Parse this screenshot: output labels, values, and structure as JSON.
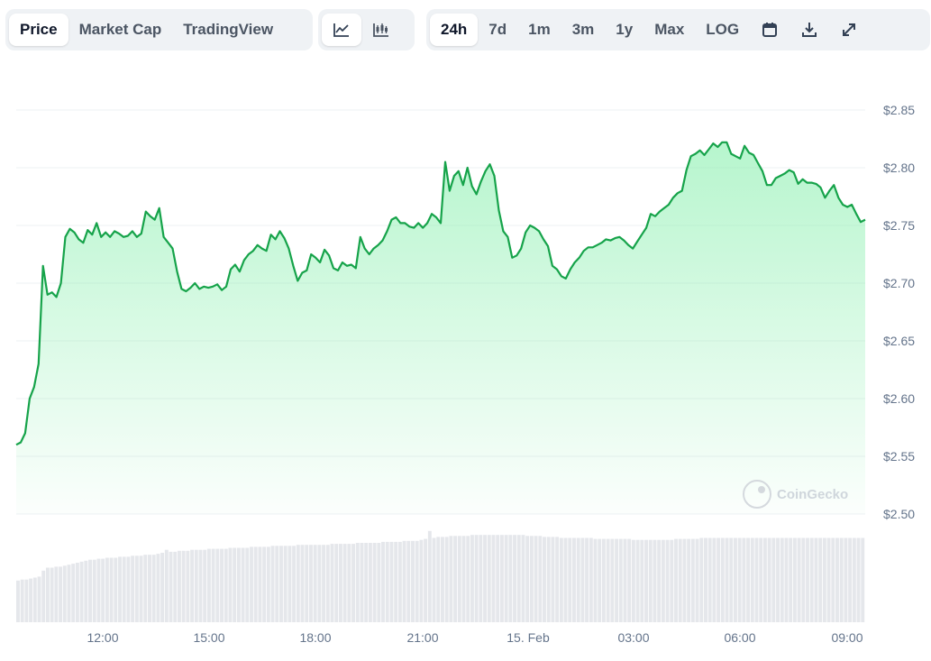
{
  "toolbar": {
    "metric_tabs": [
      {
        "label": "Price",
        "active": true
      },
      {
        "label": "Market Cap",
        "active": false
      },
      {
        "label": "TradingView",
        "active": false
      }
    ],
    "chart_type_icons": [
      {
        "icon": "line-chart-icon",
        "active": true
      },
      {
        "icon": "candlestick-chart-icon",
        "active": false
      }
    ],
    "ranges": [
      {
        "label": "24h",
        "active": true
      },
      {
        "label": "7d",
        "active": false
      },
      {
        "label": "1m",
        "active": false
      },
      {
        "label": "3m",
        "active": false
      },
      {
        "label": "1y",
        "active": false
      },
      {
        "label": "Max",
        "active": false
      },
      {
        "label": "LOG",
        "active": false
      }
    ],
    "tool_icons": [
      "calendar-icon",
      "download-icon",
      "expand-icon"
    ]
  },
  "watermark": "CoinGecko",
  "colors": {
    "line": "#16a34a",
    "fill": "#86efac",
    "volume": "#e5e7eb",
    "grid": "#eef0f3",
    "label": "#64748b"
  },
  "chart_data": {
    "type": "area",
    "title": "",
    "ylim": [
      2.5,
      2.85
    ],
    "yticks": [
      "$2.85",
      "$2.80",
      "$2.75",
      "$2.70",
      "$2.65",
      "$2.60",
      "$2.55",
      "$2.50"
    ],
    "xticks": [
      "12:00",
      "15:00",
      "18:00",
      "21:00",
      "15. Feb",
      "03:00",
      "06:00",
      "09:00"
    ],
    "grid": true,
    "series": [
      {
        "values": [
          2.56,
          2.562,
          2.57,
          2.6,
          2.61,
          2.63,
          2.715,
          2.69,
          2.692,
          2.688,
          2.7,
          2.74,
          2.747,
          2.744,
          2.738,
          2.735,
          2.746,
          2.742,
          2.752,
          2.74,
          2.744,
          2.74,
          2.745,
          2.743,
          2.74,
          2.741,
          2.745,
          2.74,
          2.743,
          2.762,
          2.758,
          2.755,
          2.765,
          2.74,
          2.735,
          2.73,
          2.71,
          2.695,
          2.693,
          2.696,
          2.7,
          2.695,
          2.697,
          2.696,
          2.697,
          2.699,
          2.694,
          2.697,
          2.712,
          2.716,
          2.71,
          2.72,
          2.725,
          2.728,
          2.733,
          2.73,
          2.728,
          2.742,
          2.738,
          2.745,
          2.739,
          2.73,
          2.715,
          2.702,
          2.709,
          2.711,
          2.725,
          2.722,
          2.718,
          2.729,
          2.724,
          2.713,
          2.711,
          2.718,
          2.715,
          2.716,
          2.713,
          2.74,
          2.73,
          2.725,
          2.73,
          2.733,
          2.737,
          2.745,
          2.755,
          2.757,
          2.752,
          2.752,
          2.749,
          2.748,
          2.752,
          2.748,
          2.752,
          2.76,
          2.757,
          2.752,
          2.805,
          2.78,
          2.793,
          2.797,
          2.785,
          2.8,
          2.784,
          2.777,
          2.788,
          2.797,
          2.803,
          2.793,
          2.763,
          2.745,
          2.74,
          2.722,
          2.724,
          2.73,
          2.744,
          2.75,
          2.748,
          2.745,
          2.738,
          2.732,
          2.715,
          2.712,
          2.706,
          2.704,
          2.712,
          2.718,
          2.722,
          2.728,
          2.731,
          2.731,
          2.733,
          2.735,
          2.738,
          2.737,
          2.739,
          2.74,
          2.737,
          2.733,
          2.73,
          2.736,
          2.742,
          2.748,
          2.76,
          2.758,
          2.762,
          2.765,
          2.768,
          2.774,
          2.778,
          2.78,
          2.798,
          2.81,
          2.812,
          2.815,
          2.811,
          2.816,
          2.821,
          2.818,
          2.822,
          2.822,
          2.812,
          2.81,
          2.808,
          2.819,
          2.813,
          2.811,
          2.804,
          2.797,
          2.785,
          2.785,
          2.791,
          2.793,
          2.795,
          2.798,
          2.796,
          2.786,
          2.79,
          2.787,
          2.787,
          2.786,
          2.783,
          2.774,
          2.78,
          2.785,
          2.774,
          2.768,
          2.766,
          2.768,
          2.76,
          2.753,
          2.755
        ]
      }
    ],
    "volume": [
      42,
      43,
      43,
      44,
      45,
      46,
      52,
      55,
      55,
      56,
      56,
      57,
      58,
      59,
      60,
      61,
      62,
      63,
      63,
      64,
      64,
      65,
      65,
      65,
      66,
      66,
      66,
      67,
      67,
      67,
      68,
      68,
      68,
      69,
      70,
      73,
      71,
      71,
      72,
      72,
      72,
      73,
      73,
      73,
      73,
      74,
      74,
      74,
      74,
      74,
      75,
      75,
      75,
      75,
      75,
      76,
      76,
      76,
      76,
      76,
      77,
      77,
      77,
      77,
      77,
      77,
      78,
      78,
      78,
      78,
      78,
      78,
      78,
      78,
      79,
      79,
      79,
      79,
      79,
      79,
      80,
      80,
      80,
      80,
      80,
      80,
      81,
      81,
      81,
      81,
      81,
      82,
      82,
      82,
      82,
      83,
      84,
      92,
      85,
      86,
      86,
      86,
      87,
      87,
      87,
      87,
      87,
      88,
      88,
      88,
      88,
      88,
      88,
      88,
      88,
      88,
      88,
      88,
      88,
      88,
      87,
      87,
      87,
      87,
      86,
      86,
      86,
      86,
      85,
      85,
      85,
      85,
      85,
      85,
      85,
      85,
      84,
      84,
      84,
      84,
      84,
      84,
      84,
      84,
      84,
      83,
      83,
      83,
      83,
      83,
      83,
      83,
      83,
      83,
      83,
      84,
      84,
      84,
      84,
      84,
      84,
      85,
      85,
      85,
      85,
      85,
      85,
      85,
      85,
      85,
      85,
      85,
      85,
      85,
      85,
      85,
      85,
      85,
      85,
      85,
      85,
      85,
      85,
      85,
      85,
      85,
      85,
      85,
      85,
      85,
      85,
      85,
      85,
      85,
      85,
      85,
      85,
      85,
      85,
      85
    ]
  }
}
